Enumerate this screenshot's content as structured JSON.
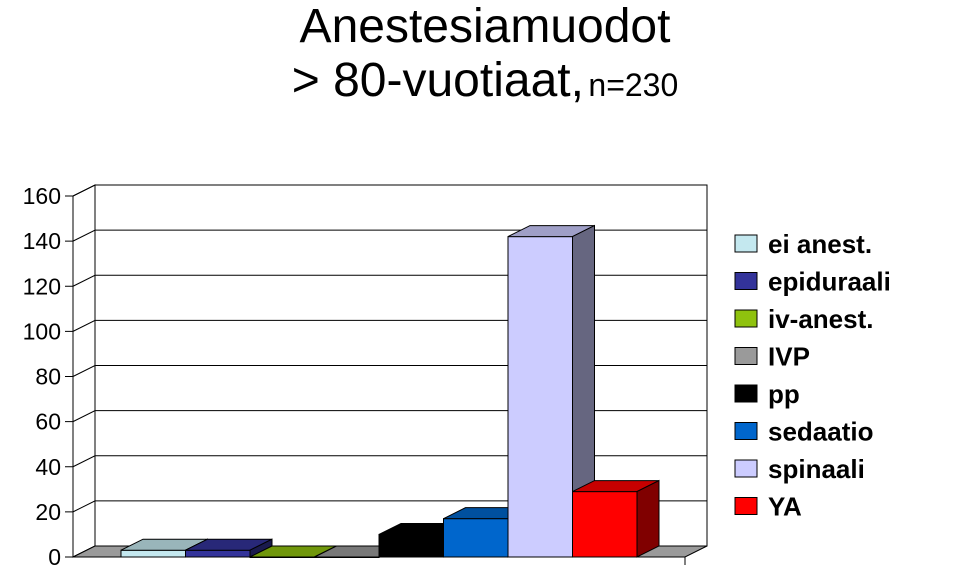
{
  "title_line1": "Anestesiamuodot",
  "title_line2_main": "> 80-vuotiaat,",
  "title_line2_small": "n=230",
  "chart_data": {
    "type": "bar",
    "three_d": true,
    "categories": [
      "ei anest.",
      "epiduraali",
      "iv-anest.",
      "IVP",
      "pp",
      "sedaatio",
      "spinaali",
      "YA"
    ],
    "values": [
      3,
      3,
      0,
      0,
      10,
      17,
      142,
      29
    ],
    "colors": [
      "#c4e8ef",
      "#33339a",
      "#8fc20e",
      "#9a9a9a",
      "#000000",
      "#0066cc",
      "#ccccff",
      "#ff0000"
    ],
    "ylim": [
      0,
      160
    ],
    "yticks": [
      "0",
      "20",
      "40",
      "60",
      "80",
      "100",
      "120",
      "140",
      "160"
    ],
    "grid": true,
    "legend": "right"
  }
}
